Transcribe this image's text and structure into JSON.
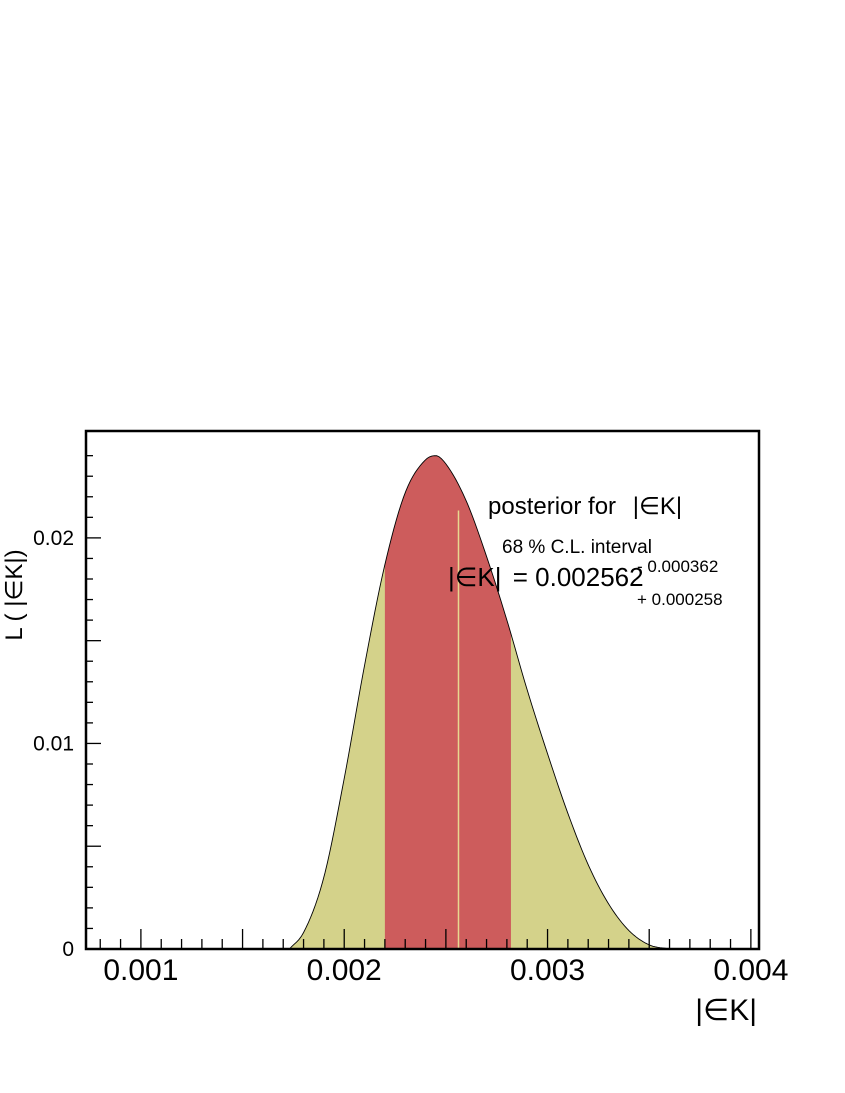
{
  "chart_data": {
    "type": "area",
    "xlabel": "|∈K|",
    "ylabel": "L ( |∈K|)",
    "xlim": [
      0.00073,
      0.00404
    ],
    "ylim": [
      0,
      0.0252
    ],
    "x_ticks": [
      0.001,
      0.002,
      0.003,
      0.004
    ],
    "x_tick_labels": [
      "0.001",
      "0.002",
      "0.003",
      "0.004"
    ],
    "y_ticks": [
      0,
      0.01,
      0.02
    ],
    "y_tick_labels": [
      "0",
      "0.01",
      "0.02"
    ],
    "grid": false,
    "posterior": {
      "x": [
        0.00173,
        0.0018,
        0.0019,
        0.002,
        0.0021,
        0.0022,
        0.0023,
        0.0024,
        0.00245,
        0.0025,
        0.0026,
        0.0027,
        0.0028,
        0.0029,
        0.003,
        0.0031,
        0.0032,
        0.0033,
        0.0034,
        0.0035,
        0.0036
      ],
      "y": [
        0.0,
        0.0008,
        0.0035,
        0.0083,
        0.0138,
        0.0187,
        0.0222,
        0.0238,
        0.024,
        0.0236,
        0.0218,
        0.0191,
        0.016,
        0.0126,
        0.0095,
        0.0066,
        0.0041,
        0.0022,
        0.0009,
        0.0002,
        0.0
      ],
      "fill_color": "#d4d28a",
      "interval_fill_color": "#cd5c5c",
      "line_color": "#000000"
    },
    "interval_68": {
      "low": 0.0022,
      "high": 0.00282
    },
    "central_value_line": {
      "x": 0.002562,
      "color": "#e8d890"
    },
    "annotations": {
      "title_prefix": "posterior for",
      "title_var": "|∈K|",
      "interval_label": "68 % C.L. interval",
      "value_lhs": "|∈K|",
      "value_text": "= 0.002562",
      "err_minus": "- 0.000362",
      "err_plus": "+ 0.000258"
    }
  }
}
